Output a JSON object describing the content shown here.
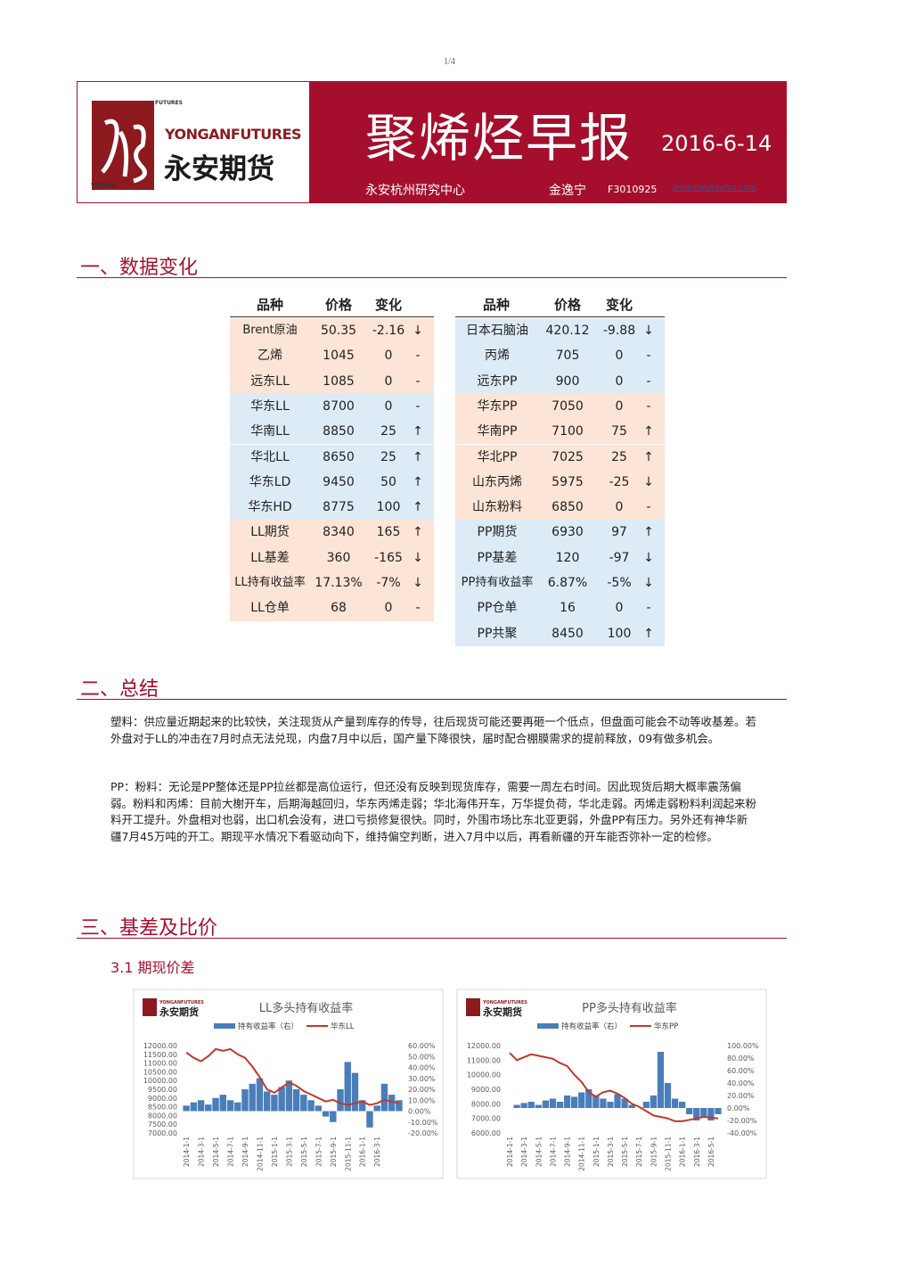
{
  "page_number": "1/4",
  "header": {
    "logo_top": "FUTURES",
    "logo_side": "YONGAN",
    "logo_en": "YONGANFUTURES",
    "logo_cn": "永安期货",
    "title": "聚烯烃早报",
    "date": "2016-6-14",
    "org": "永安杭州研究中心",
    "author": "金逸宁",
    "license": "F3010925",
    "email": "jinyining@yafco.com"
  },
  "sections": [
    "一、数据变化",
    "二、总结",
    "三、基差及比价"
  ],
  "subsection": "3.1 期现价差",
  "tables": {
    "left": {
      "header": [
        "品种",
        "价格",
        "变化"
      ],
      "rows": [
        [
          "Brent原油",
          50.35,
          -2.16,
          "↓"
        ],
        [
          "乙烯",
          1045,
          0,
          "-"
        ],
        [
          "远东LL",
          1085,
          0,
          "-"
        ],
        [
          "华东LL",
          8700,
          0,
          "-"
        ],
        [
          "华南LL",
          8850,
          25,
          "↑"
        ],
        [
          "华北LL",
          8650,
          25,
          "↑"
        ],
        [
          "华东LD",
          9450,
          50,
          "↑"
        ],
        [
          "华东HD",
          8775,
          100,
          "↑"
        ],
        [
          "LL期货",
          8340,
          165,
          "↑"
        ],
        [
          "LL基差",
          360,
          -165,
          "↓"
        ],
        [
          "LL持有收益率",
          "17.13%",
          "-7%",
          "↓"
        ],
        [
          "LL仓单",
          68,
          0,
          "-"
        ]
      ],
      "shades": [
        "#fce4d6",
        "#fce4d6",
        "#fce4d6",
        "#ddebf7",
        "#ddebf7",
        "#ddebf7",
        "#ddebf7",
        "#ddebf7",
        "#fce4d6",
        "#fce4d6",
        "#fce4d6",
        "#fce4d6"
      ]
    },
    "right": {
      "header": [
        "品种",
        "价格",
        "变化"
      ],
      "rows": [
        [
          "日本石脑油",
          420.12,
          -9.88,
          "↓"
        ],
        [
          "丙烯",
          705,
          0,
          "-"
        ],
        [
          "远东PP",
          900,
          0,
          "-"
        ],
        [
          "华东PP",
          7050,
          0,
          "-"
        ],
        [
          "华南PP",
          7100,
          75,
          "↑"
        ],
        [
          "华北PP",
          7025,
          25,
          "↑"
        ],
        [
          "山东丙烯",
          5975,
          -25,
          "↓"
        ],
        [
          "山东粉料",
          6850,
          0,
          "-"
        ],
        [
          "PP期货",
          6930,
          97,
          "↑"
        ],
        [
          "PP基差",
          120,
          -97,
          "↓"
        ],
        [
          "PP持有收益率",
          "6.87%",
          "-5%",
          "↓"
        ],
        [
          "PP仓单",
          16,
          0,
          "-"
        ],
        [
          "PP共聚",
          8450,
          100,
          "↑"
        ]
      ],
      "shades": [
        "#ddebf7",
        "#ddebf7",
        "#ddebf7",
        "#fce4d6",
        "#fce4d6",
        "#fce4d6",
        "#fce4d6",
        "#fce4d6",
        "#ddebf7",
        "#ddebf7",
        "#ddebf7",
        "#ddebf7",
        "#ddebf7"
      ]
    }
  },
  "summary": [
    "塑料：供应量近期起来的比较快，关注现货从产量到库存的传导，往后现货可能还要再砸一个低点，但盘面可能会不动等收基差。若外盘对于LL的冲击在7月时点无法兑现，内盘7月中以后，国产量下降很快，届时配合棚膜需求的提前释放，09有做多机会。",
    "PP：粉料：无论是PP整体还是PP拉丝都是高位运行，但还没有反映到现货库存，需要一周左右时间。因此现货后期大概率震荡偏弱。粉料和丙烯：目前大榭开车，后期海越回归，华东丙烯走弱；华北海伟开车，万华提负荷，华北走弱。丙烯走弱粉料利润起来粉料开工提升。外盘相对也弱，出口机会没有，进口亏损修复很快。同时，外围市场比东北亚更弱，外盘PP有压力。另外还有神华新疆7月45万吨的开工。期现平水情况下看驱动向下，维持偏空判断，进入7月中以后，再看新疆的开车能否弥补一定的检修。"
  ],
  "charts": [
    {
      "type": "combo",
      "title": "LL多头持有收益率",
      "categories": [
        "2014-1-1",
        null,
        "2014-3-1",
        null,
        "2014-5-1",
        null,
        "2014-7-1",
        null,
        "2014-9-1",
        null,
        "2014-11-1",
        null,
        "2015-1-1",
        null,
        "2015-3-1",
        null,
        "2015-5-1",
        null,
        "2015-7-1",
        null,
        "2015-9-1",
        null,
        "2015-11-1",
        null,
        "2016-1-1",
        null,
        "2016-3-1",
        null,
        null,
        null
      ],
      "series": [
        {
          "name": "持有收益率（右）",
          "type": "bar",
          "axis": "y2",
          "color": "#4a7ebb",
          "values": [
            5,
            8,
            10,
            6,
            12,
            15,
            10,
            8,
            20,
            25,
            30,
            18,
            15,
            22,
            28,
            20,
            15,
            10,
            5,
            -5,
            -10,
            20,
            45,
            35,
            10,
            -15,
            5,
            25,
            15,
            10
          ]
        },
        {
          "name": "华东LL",
          "type": "line",
          "color": "#c0392b",
          "values": [
            11600,
            11300,
            11100,
            11400,
            11800,
            11700,
            11800,
            11500,
            11300,
            10800,
            10200,
            9500,
            9300,
            9600,
            9900,
            9700,
            9400,
            9200,
            9000,
            8800,
            8900,
            8700,
            8600,
            8700,
            8800,
            8600,
            8700,
            8900,
            8800,
            8700
          ]
        }
      ],
      "ylim": [
        7000,
        12000
      ],
      "yticks": [
        {
          "value": 7000,
          "label": "7000.00"
        },
        {
          "value": 7500,
          "label": "7500.00"
        },
        {
          "value": 8000,
          "label": "8000.00"
        },
        {
          "value": 8500,
          "label": "8500.00"
        },
        {
          "value": 9000,
          "label": "9000.00"
        },
        {
          "value": 9500,
          "label": "9500.00"
        },
        {
          "value": 10000,
          "label": "10000.00"
        },
        {
          "value": 10500,
          "label": "10500.00"
        },
        {
          "value": 11000,
          "label": "11000.00"
        },
        {
          "value": 11500,
          "label": "11500.00"
        },
        {
          "value": 12000,
          "label": "12000.00"
        }
      ],
      "y2lim": [
        -20,
        60
      ],
      "y2ticks": [
        {
          "value": -20,
          "label": "-20.00%"
        },
        {
          "value": -10,
          "label": "-10.00%"
        },
        {
          "value": 0,
          "label": "0.00%"
        },
        {
          "value": 10,
          "label": "10.00%"
        },
        {
          "value": 20,
          "label": "20.00%"
        },
        {
          "value": 30,
          "label": "30.00%"
        },
        {
          "value": 40,
          "label": "40.00%"
        },
        {
          "value": 50,
          "label": "50.00%"
        },
        {
          "value": 60,
          "label": "60.00%"
        }
      ]
    },
    {
      "type": "combo",
      "title": "PP多头持有收益率",
      "categories": [
        "2014-1-1",
        null,
        "2014-3-1",
        null,
        "2014-5-1",
        null,
        "2014-7-1",
        null,
        "2014-9-1",
        null,
        "2014-11-1",
        null,
        "2015-1-1",
        null,
        "2015-3-1",
        null,
        "2015-5-1",
        null,
        "2015-7-1",
        null,
        "2015-9-1",
        null,
        "2015-11-1",
        null,
        "2016-1-1",
        null,
        "2016-3-1",
        null,
        "2016-5-1",
        null
      ],
      "series": [
        {
          "name": "持有收益率（右）",
          "type": "bar",
          "axis": "y2",
          "color": "#4a7ebb",
          "values": [
            0,
            5,
            8,
            10,
            5,
            12,
            15,
            10,
            20,
            18,
            25,
            30,
            20,
            15,
            10,
            22,
            15,
            5,
            0,
            10,
            20,
            90,
            40,
            15,
            10,
            -10,
            -20,
            -15,
            -20,
            -10
          ]
        },
        {
          "name": "华东PP",
          "type": "line",
          "color": "#c0392b",
          "values": [
            11500,
            11000,
            11200,
            11400,
            11300,
            11200,
            11100,
            10800,
            10600,
            10000,
            9500,
            8800,
            8500,
            8800,
            8900,
            8700,
            8400,
            8000,
            7800,
            7500,
            7200,
            7100,
            7000,
            6800,
            6800,
            6900,
            7000,
            7100,
            7050,
            7000
          ]
        }
      ],
      "ylim": [
        6000,
        12000
      ],
      "yticks": [
        {
          "value": 6000,
          "label": "6000.00"
        },
        {
          "value": 7000,
          "label": "7000.00"
        },
        {
          "value": 8000,
          "label": "8000.00"
        },
        {
          "value": 9000,
          "label": "9000.00"
        },
        {
          "value": 10000,
          "label": "10000.00"
        },
        {
          "value": 11000,
          "label": "11000.00"
        },
        {
          "value": 12000,
          "label": "12000.00"
        }
      ],
      "y2lim": [
        -40,
        100
      ],
      "y2ticks": [
        {
          "value": -40,
          "label": "-40.00%"
        },
        {
          "value": -20,
          "label": "-20.00%"
        },
        {
          "value": 0,
          "label": "0.00%"
        },
        {
          "value": 20,
          "label": "20.00%"
        },
        {
          "value": 40,
          "label": "40.00%"
        },
        {
          "value": 60,
          "label": "60.00%"
        },
        {
          "value": 80,
          "label": "80.00%"
        },
        {
          "value": 100,
          "label": "100.00%"
        }
      ]
    }
  ]
}
